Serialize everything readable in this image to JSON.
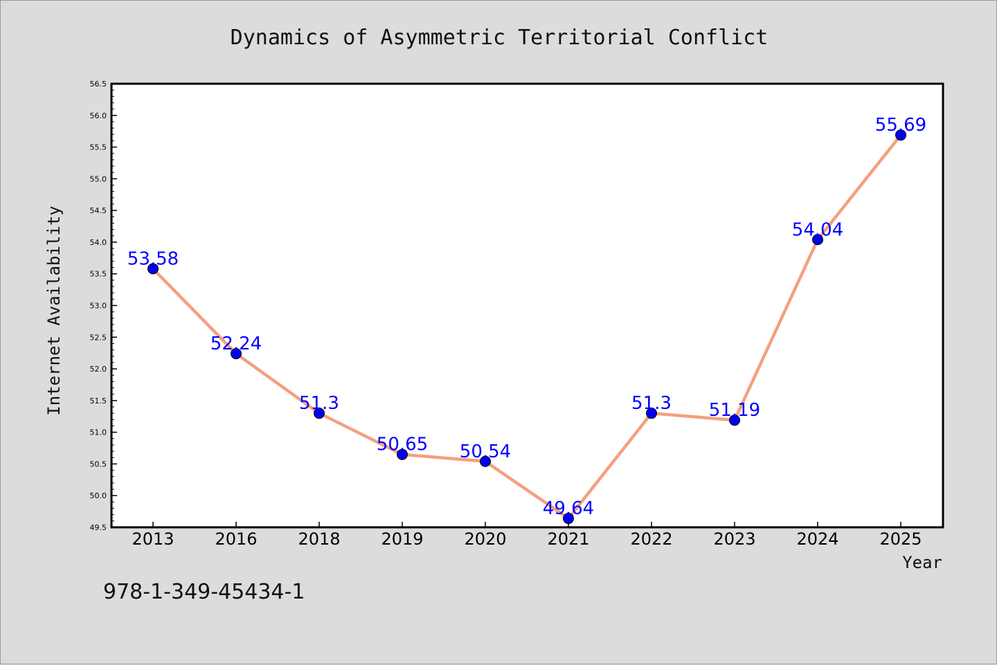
{
  "chart_data": {
    "type": "line",
    "title": "Dynamics of Asymmetric Territorial Conflict",
    "xlabel": "Year",
    "ylabel": "Internet Availability",
    "categories": [
      "2013",
      "2016",
      "2018",
      "2019",
      "2020",
      "2021",
      "2022",
      "2023",
      "2024",
      "2025"
    ],
    "values": [
      53.58,
      52.24,
      51.3,
      50.65,
      50.54,
      49.64,
      51.3,
      51.19,
      54.04,
      55.69
    ],
    "data_labels": [
      "53.58",
      "52.24",
      "51.3",
      "50.65",
      "50.54",
      "49.64",
      "51.3",
      "51.19",
      "54.04",
      "55.69"
    ],
    "ylim": [
      49.5,
      56.5
    ],
    "yticks": [
      "49.5",
      "50.0",
      "50.5",
      "51.0",
      "51.5",
      "52.0",
      "52.5",
      "53.0",
      "53.5",
      "54.0",
      "54.5",
      "55.0",
      "55.5",
      "56.0",
      "56.5"
    ],
    "grid": false,
    "legend": false,
    "colors": {
      "line": "#f4a07e",
      "marker": "#0000ee",
      "label": "#0000ff",
      "plot_background": "#ffffff",
      "figure_background": "#dcdcdc"
    }
  },
  "footer": {
    "isbn": "978-1-349-45434-1"
  }
}
